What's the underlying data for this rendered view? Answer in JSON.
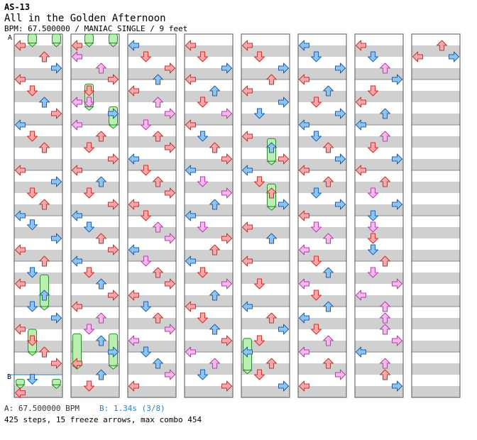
{
  "header": {
    "chart_id": "AS-13",
    "title": "All in the Golden Afternoon",
    "meta": "BPM: 67.500000 / MANIAC SINGLE / 9 feet"
  },
  "markers": {
    "a": "A",
    "b": "B"
  },
  "footer": {
    "bpm_a": "A: 67.500000 BPM",
    "bpm_b": "B: 1.34s (3/8)",
    "stats": "425 steps, 15 freeze arrows, max combo 454"
  },
  "colors": {
    "stripe": "#d0d0d0",
    "border": "#555555",
    "red": "#f7a9a9",
    "red_stroke": "#c83030",
    "blue": "#8fc3f0",
    "blue_stroke": "#2060b0",
    "pink": "#f7b8f0",
    "pink_stroke": "#b040a8",
    "freeze": "#b9efb0",
    "freeze_stroke": "#2f8a2f",
    "b_line": "#2a7fd0"
  },
  "chart_data": {
    "type": "step-chart",
    "measures_per_column": 8,
    "columns": 8,
    "lanes": [
      "left",
      "down",
      "up",
      "right"
    ],
    "total_steps": 425,
    "freeze_arrows": 15,
    "max_combo": 454,
    "bpm": 67.5,
    "b_marker_measure": 7.5,
    "notes": [
      [
        0.25,
        "L",
        "r"
      ],
      [
        0.5,
        "U",
        "r"
      ],
      [
        0.75,
        "R",
        "b"
      ],
      [
        1.0,
        "L",
        "r"
      ],
      [
        1.25,
        "D",
        "r"
      ],
      [
        1.5,
        "U",
        "b"
      ],
      [
        1.75,
        "R",
        "r"
      ],
      [
        2.0,
        "L",
        "b"
      ],
      [
        2.25,
        "D",
        "r"
      ],
      [
        2.5,
        "U",
        "r"
      ],
      [
        3.0,
        "L",
        "r"
      ],
      [
        3.25,
        "R",
        "b"
      ],
      [
        3.5,
        "D",
        "r"
      ],
      [
        3.75,
        "U",
        "r"
      ],
      [
        4.0,
        "L",
        "b"
      ],
      [
        4.2,
        "D",
        "b"
      ],
      [
        4.5,
        "R",
        "b"
      ],
      [
        4.75,
        "L",
        "r"
      ],
      [
        5.0,
        "U",
        "r"
      ],
      [
        5.25,
        "D",
        "b"
      ],
      [
        5.5,
        "L",
        "r"
      ],
      [
        5.75,
        "U",
        "b"
      ],
      [
        6.0,
        "D",
        "b"
      ],
      [
        6.25,
        "R",
        "b"
      ],
      [
        6.5,
        "L",
        "r"
      ],
      [
        6.75,
        "D",
        "r"
      ],
      [
        7.0,
        "U",
        "r"
      ],
      [
        7.25,
        "R",
        "r"
      ],
      [
        7.6,
        "D",
        "b"
      ],
      [
        7.9,
        "L",
        "r"
      ],
      [
        8.25,
        "L",
        "r"
      ],
      [
        8.5,
        "L",
        "p"
      ],
      [
        8.75,
        "U",
        "p"
      ],
      [
        9.0,
        "R",
        "r"
      ],
      [
        9.25,
        "D",
        "r"
      ],
      [
        9.5,
        "L",
        "p"
      ],
      [
        9.5,
        "D",
        "p"
      ],
      [
        9.75,
        "R",
        "b"
      ],
      [
        10.0,
        "L",
        "p"
      ],
      [
        10.25,
        "U",
        "r"
      ],
      [
        10.5,
        "D",
        "r"
      ],
      [
        10.75,
        "R",
        "r"
      ],
      [
        11.0,
        "L",
        "r"
      ],
      [
        11.25,
        "U",
        "b"
      ],
      [
        11.5,
        "D",
        "r"
      ],
      [
        11.75,
        "R",
        "r"
      ],
      [
        12.0,
        "L",
        "b"
      ],
      [
        12.25,
        "D",
        "b"
      ],
      [
        12.5,
        "U",
        "r"
      ],
      [
        12.75,
        "R",
        "r"
      ],
      [
        13.0,
        "L",
        "b"
      ],
      [
        13.25,
        "D",
        "r"
      ],
      [
        13.5,
        "U",
        "b"
      ],
      [
        13.75,
        "R",
        "r"
      ],
      [
        14.0,
        "L",
        "r"
      ],
      [
        14.25,
        "U",
        "p"
      ],
      [
        14.5,
        "D",
        "p"
      ],
      [
        14.75,
        "U",
        "b"
      ],
      [
        15.0,
        "R",
        "b"
      ],
      [
        15.25,
        "L",
        "r"
      ],
      [
        15.5,
        "U",
        "b"
      ],
      [
        15.75,
        "D",
        "r"
      ],
      [
        16.25,
        "L",
        "b"
      ],
      [
        16.5,
        "D",
        "r"
      ],
      [
        16.75,
        "R",
        "r"
      ],
      [
        17.0,
        "U",
        "b"
      ],
      [
        17.25,
        "L",
        "r"
      ],
      [
        17.5,
        "U",
        "p"
      ],
      [
        17.75,
        "R",
        "p"
      ],
      [
        18.0,
        "D",
        "p"
      ],
      [
        18.25,
        "U",
        "r"
      ],
      [
        18.5,
        "R",
        "r"
      ],
      [
        18.75,
        "L",
        "b"
      ],
      [
        19.0,
        "D",
        "r"
      ],
      [
        19.25,
        "U",
        "r"
      ],
      [
        19.5,
        "R",
        "r"
      ],
      [
        19.75,
        "L",
        "r"
      ],
      [
        20.0,
        "D",
        "r"
      ],
      [
        20.25,
        "U",
        "p"
      ],
      [
        20.5,
        "R",
        "p"
      ],
      [
        20.75,
        "L",
        "b"
      ],
      [
        21.0,
        "D",
        "p"
      ],
      [
        21.25,
        "U",
        "r"
      ],
      [
        21.5,
        "R",
        "r"
      ],
      [
        21.75,
        "L",
        "r"
      ],
      [
        22.0,
        "D",
        "b"
      ],
      [
        22.25,
        "U",
        "r"
      ],
      [
        22.5,
        "R",
        "p"
      ],
      [
        22.75,
        "L",
        "p"
      ],
      [
        23.0,
        "D",
        "b"
      ],
      [
        23.25,
        "U",
        "b"
      ],
      [
        23.5,
        "R",
        "p"
      ],
      [
        23.75,
        "L",
        "r"
      ],
      [
        24.25,
        "L",
        "r"
      ],
      [
        24.5,
        "D",
        "r"
      ],
      [
        24.75,
        "R",
        "b"
      ],
      [
        25.0,
        "L",
        "r"
      ],
      [
        25.25,
        "U",
        "b"
      ],
      [
        25.5,
        "D",
        "r"
      ],
      [
        25.75,
        "R",
        "p"
      ],
      [
        26.0,
        "L",
        "r"
      ],
      [
        26.25,
        "D",
        "b"
      ],
      [
        26.5,
        "U",
        "r"
      ],
      [
        26.75,
        "R",
        "r"
      ],
      [
        27.0,
        "L",
        "b"
      ],
      [
        27.25,
        "D",
        "p"
      ],
      [
        27.5,
        "R",
        "p"
      ],
      [
        27.75,
        "U",
        "b"
      ],
      [
        28.0,
        "L",
        "b"
      ],
      [
        28.25,
        "D",
        "p"
      ],
      [
        28.5,
        "R",
        "r"
      ],
      [
        28.75,
        "U",
        "r"
      ],
      [
        29.0,
        "L",
        "b"
      ],
      [
        29.25,
        "D",
        "r"
      ],
      [
        29.5,
        "R",
        "p"
      ],
      [
        29.75,
        "U",
        "b"
      ],
      [
        30.0,
        "L",
        "r"
      ],
      [
        30.25,
        "D",
        "r"
      ],
      [
        30.5,
        "U",
        "b"
      ],
      [
        30.75,
        "R",
        "r"
      ],
      [
        31.0,
        "L",
        "p"
      ],
      [
        31.25,
        "U",
        "p"
      ],
      [
        31.5,
        "D",
        "b"
      ],
      [
        31.75,
        "R",
        "r"
      ],
      [
        32.25,
        "L",
        "r"
      ],
      [
        32.5,
        "D",
        "r"
      ],
      [
        32.75,
        "R",
        "b"
      ],
      [
        33.0,
        "U",
        "r"
      ],
      [
        33.25,
        "L",
        "r"
      ],
      [
        33.5,
        "R",
        "b"
      ],
      [
        33.75,
        "D",
        "b"
      ],
      [
        34.25,
        "L",
        "r"
      ],
      [
        34.5,
        "U",
        "b"
      ],
      [
        34.75,
        "R",
        "r"
      ],
      [
        35.0,
        "L",
        "b"
      ],
      [
        35.25,
        "D",
        "r"
      ],
      [
        35.5,
        "U",
        "r"
      ],
      [
        35.75,
        "R",
        "b"
      ],
      [
        36.25,
        "L",
        "r"
      ],
      [
        36.5,
        "U",
        "b"
      ],
      [
        37.0,
        "L",
        "r"
      ],
      [
        37.5,
        "D",
        "r"
      ],
      [
        38.0,
        "L",
        "b"
      ],
      [
        38.25,
        "U",
        "r"
      ],
      [
        38.5,
        "R",
        "b"
      ],
      [
        38.75,
        "D",
        "r"
      ],
      [
        39.0,
        "L",
        "b"
      ],
      [
        39.25,
        "U",
        "r"
      ],
      [
        39.5,
        "D",
        "r"
      ],
      [
        39.75,
        "R",
        "b"
      ],
      [
        40.25,
        "L",
        "b"
      ],
      [
        40.5,
        "D",
        "b"
      ],
      [
        40.75,
        "R",
        "b"
      ],
      [
        41.0,
        "L",
        "r"
      ],
      [
        41.25,
        "U",
        "b"
      ],
      [
        41.5,
        "D",
        "r"
      ],
      [
        41.75,
        "R",
        "b"
      ],
      [
        42.0,
        "L",
        "b"
      ],
      [
        42.25,
        "D",
        "b"
      ],
      [
        42.5,
        "U",
        "r"
      ],
      [
        42.75,
        "R",
        "b"
      ],
      [
        43.0,
        "L",
        "r"
      ],
      [
        43.25,
        "U",
        "r"
      ],
      [
        43.5,
        "D",
        "b"
      ],
      [
        43.75,
        "R",
        "b"
      ],
      [
        44.0,
        "L",
        "r"
      ],
      [
        44.25,
        "D",
        "p"
      ],
      [
        44.5,
        "U",
        "p"
      ],
      [
        44.75,
        "L",
        "p"
      ],
      [
        45.0,
        "D",
        "r"
      ],
      [
        45.25,
        "U",
        "b"
      ],
      [
        45.5,
        "L",
        "p"
      ],
      [
        45.75,
        "D",
        "r"
      ],
      [
        46.0,
        "U",
        "b"
      ],
      [
        46.25,
        "L",
        "b"
      ],
      [
        46.5,
        "D",
        "r"
      ],
      [
        46.75,
        "U",
        "p"
      ],
      [
        47.0,
        "L",
        "p"
      ],
      [
        47.25,
        "U",
        "r"
      ],
      [
        47.5,
        "R",
        "p"
      ],
      [
        47.75,
        "L",
        "r"
      ],
      [
        48.25,
        "L",
        "r"
      ],
      [
        48.5,
        "D",
        "b"
      ],
      [
        48.75,
        "U",
        "p"
      ],
      [
        49.0,
        "R",
        "b"
      ],
      [
        49.25,
        "D",
        "r"
      ],
      [
        49.5,
        "L",
        "r"
      ],
      [
        49.75,
        "U",
        "b"
      ],
      [
        50.0,
        "L",
        "b"
      ],
      [
        50.25,
        "U",
        "p"
      ],
      [
        50.5,
        "D",
        "r"
      ],
      [
        50.75,
        "R",
        "b"
      ],
      [
        51.0,
        "L",
        "r"
      ],
      [
        51.25,
        "U",
        "r"
      ],
      [
        51.5,
        "D",
        "p"
      ],
      [
        51.75,
        "R",
        "b"
      ],
      [
        52.0,
        "D",
        "b"
      ],
      [
        52.25,
        "D",
        "p"
      ],
      [
        52.5,
        "D",
        "r"
      ],
      [
        52.75,
        "D",
        "b"
      ],
      [
        53.0,
        "U",
        "r"
      ],
      [
        53.25,
        "D",
        "p"
      ],
      [
        53.5,
        "R",
        "p"
      ],
      [
        53.75,
        "L",
        "p"
      ],
      [
        54.0,
        "U",
        "p"
      ],
      [
        54.25,
        "U",
        "p"
      ],
      [
        54.5,
        "U",
        "p"
      ],
      [
        54.75,
        "R",
        "p"
      ],
      [
        55.0,
        "L",
        "b"
      ],
      [
        55.25,
        "U",
        "p"
      ],
      [
        55.5,
        "U",
        "r"
      ],
      [
        55.75,
        "R",
        "b"
      ],
      [
        56.25,
        "U",
        "r"
      ],
      [
        56.5,
        "L",
        "r"
      ],
      [
        56.5,
        "R",
        "b"
      ]
    ],
    "freezes": [
      [
        0.0,
        0.2,
        "D"
      ],
      [
        0.0,
        0.2,
        "R"
      ],
      [
        5.3,
        6.0,
        "U"
      ],
      [
        6.5,
        7.0,
        "D"
      ],
      [
        7.6,
        8.0,
        "L"
      ],
      [
        7.6,
        8.0,
        "R"
      ],
      [
        8.0,
        8.2,
        "D"
      ],
      [
        8.0,
        8.2,
        "R"
      ],
      [
        9.1,
        9.6,
        "D"
      ],
      [
        9.6,
        10.0,
        "R"
      ],
      [
        14.6,
        15.3,
        "L"
      ],
      [
        14.6,
        15.3,
        "R"
      ],
      [
        34.3,
        34.8,
        "U"
      ],
      [
        35.3,
        35.8,
        "U"
      ],
      [
        38.7,
        39.4,
        "L"
      ]
    ]
  }
}
